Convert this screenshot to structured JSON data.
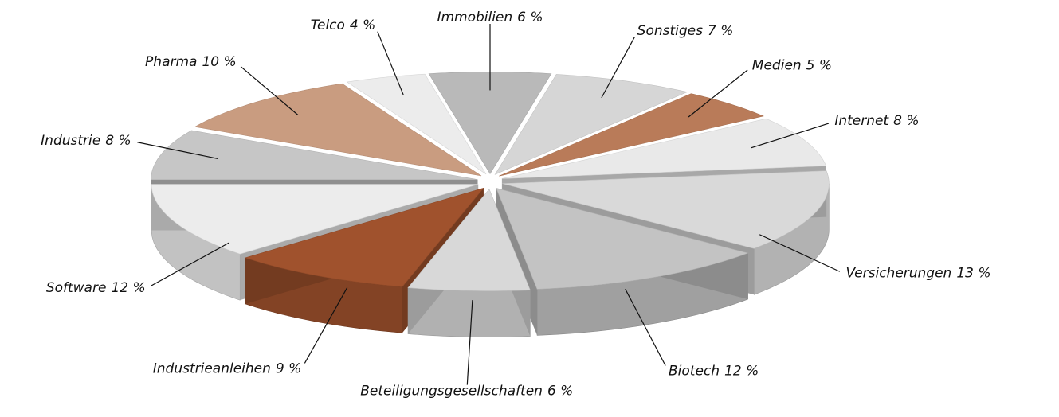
{
  "chart_data": {
    "type": "pie",
    "categories": [
      "Immobilien",
      "Sonstiges",
      "Medien",
      "Internet",
      "Versicherungen",
      "Biotech",
      "Beteiligungsgesellschaften",
      "Industrieanleihen",
      "Software",
      "Industrie",
      "Pharma",
      "Telco"
    ],
    "values": [
      6,
      7,
      5,
      8,
      13,
      12,
      6,
      9,
      12,
      8,
      10,
      4
    ],
    "value_labels": [
      "6 %",
      "7 %",
      "5 %",
      "8 %",
      "13 %",
      "12 %",
      "6 %",
      "9 %",
      "12 %",
      "8 %",
      "10 %",
      "4 %"
    ],
    "colors": [
      "#b9b9b9",
      "#d6d6d6",
      "#b97b59",
      "#e9e9e9",
      "#d9d9d9",
      "#c3c3c3",
      "#d8d8d8",
      "#a0522d",
      "#ececec",
      "#c6c6c6",
      "#c99c80",
      "#ececec"
    ]
  }
}
